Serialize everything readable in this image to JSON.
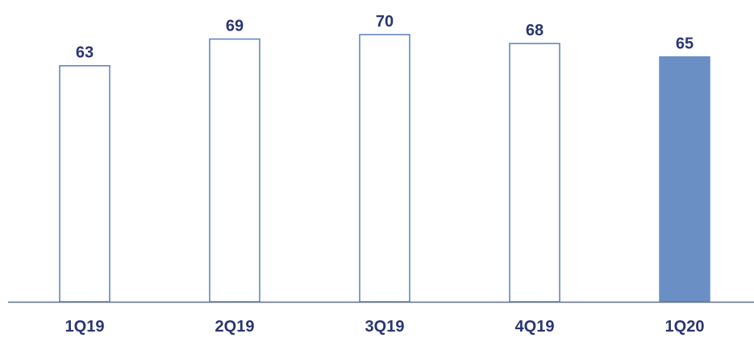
{
  "chart_data": {
    "type": "bar",
    "categories": [
      "1Q19",
      "2Q19",
      "3Q19",
      "4Q19",
      "1Q20"
    ],
    "values": [
      63,
      69,
      70,
      68,
      65
    ],
    "value_labels": [
      "63",
      "69",
      "70",
      "68",
      "65"
    ],
    "highlighted_index": 4,
    "title": "",
    "xlabel": "",
    "ylabel": "",
    "ylim": [
      0,
      80
    ],
    "grid": false,
    "legend": "none"
  },
  "colors": {
    "bar_outline": "#5b7fb8",
    "bar_highlight_fill": "#6a8fc4",
    "label_text": "#2a3572",
    "axis_line": "#5f6f8e"
  }
}
